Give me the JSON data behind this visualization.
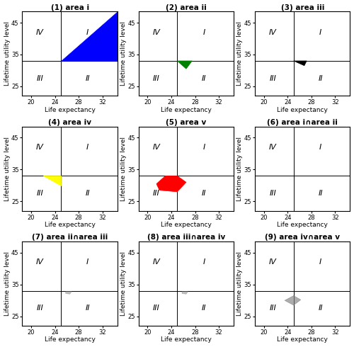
{
  "titles": [
    "(1) area i",
    "(2) area ii",
    "(3) area iii",
    "(4) area iv",
    "(5) area v",
    "(6) area i∩area ii",
    "(7) area ii∩area iii",
    "(8) area iii∩area iv",
    "(9) area iv∩area v"
  ],
  "xlabel": "Life expectancy",
  "ylabel": "Lifetime utility level",
  "xlim": [
    18.5,
    34.5
  ],
  "ylim": [
    22.0,
    48.5
  ],
  "xticks": [
    20,
    24,
    28,
    32
  ],
  "yticks": [
    25,
    35,
    45
  ],
  "quadrant_x": 25.0,
  "quadrant_y": 33.0,
  "background": "white",
  "title_fontsize": 7.5,
  "label_fontsize": 6.5,
  "tick_fontsize": 6,
  "quadrant_label_fontsize": 8
}
